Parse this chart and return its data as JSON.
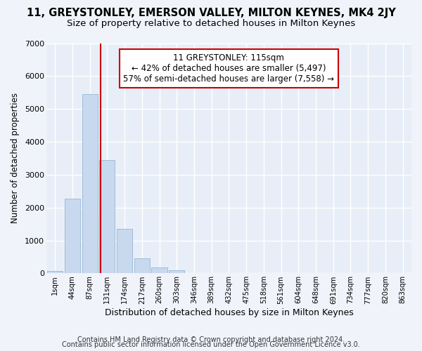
{
  "title1": "11, GREYSTONLEY, EMERSON VALLEY, MILTON KEYNES, MK4 2JY",
  "title2": "Size of property relative to detached houses in Milton Keynes",
  "xlabel": "Distribution of detached houses by size in Milton Keynes",
  "ylabel": "Number of detached properties",
  "footnote1": "Contains HM Land Registry data © Crown copyright and database right 2024.",
  "footnote2": "Contains public sector information licensed under the Open Government Licence v3.0.",
  "bar_labels": [
    "1sqm",
    "44sqm",
    "87sqm",
    "131sqm",
    "174sqm",
    "217sqm",
    "260sqm",
    "303sqm",
    "346sqm",
    "389sqm",
    "432sqm",
    "475sqm",
    "518sqm",
    "561sqm",
    "604sqm",
    "648sqm",
    "691sqm",
    "734sqm",
    "777sqm",
    "820sqm",
    "863sqm"
  ],
  "bar_values": [
    80,
    2280,
    5450,
    3450,
    1350,
    450,
    175,
    100,
    0,
    0,
    0,
    0,
    0,
    0,
    0,
    0,
    0,
    0,
    0,
    0,
    0
  ],
  "bar_color": "#c8d9ef",
  "bar_edge_color": "#a0bcd8",
  "annotation_text": "11 GREYSTONLEY: 115sqm\n← 42% of detached houses are smaller (5,497)\n57% of semi-detached houses are larger (7,558) →",
  "annotation_box_color": "white",
  "annotation_box_edge_color": "#cc0000",
  "vline_color": "#cc0000",
  "ylim": [
    0,
    7000
  ],
  "yticks": [
    0,
    1000,
    2000,
    3000,
    4000,
    5000,
    6000,
    7000
  ],
  "bg_color": "#f0f4fa",
  "plot_bg_color": "#e8eef8",
  "title1_fontsize": 10.5,
  "title2_fontsize": 9.5,
  "xlabel_fontsize": 9,
  "ylabel_fontsize": 8.5,
  "footnote_fontsize": 7,
  "ann_fontsize": 8.5
}
